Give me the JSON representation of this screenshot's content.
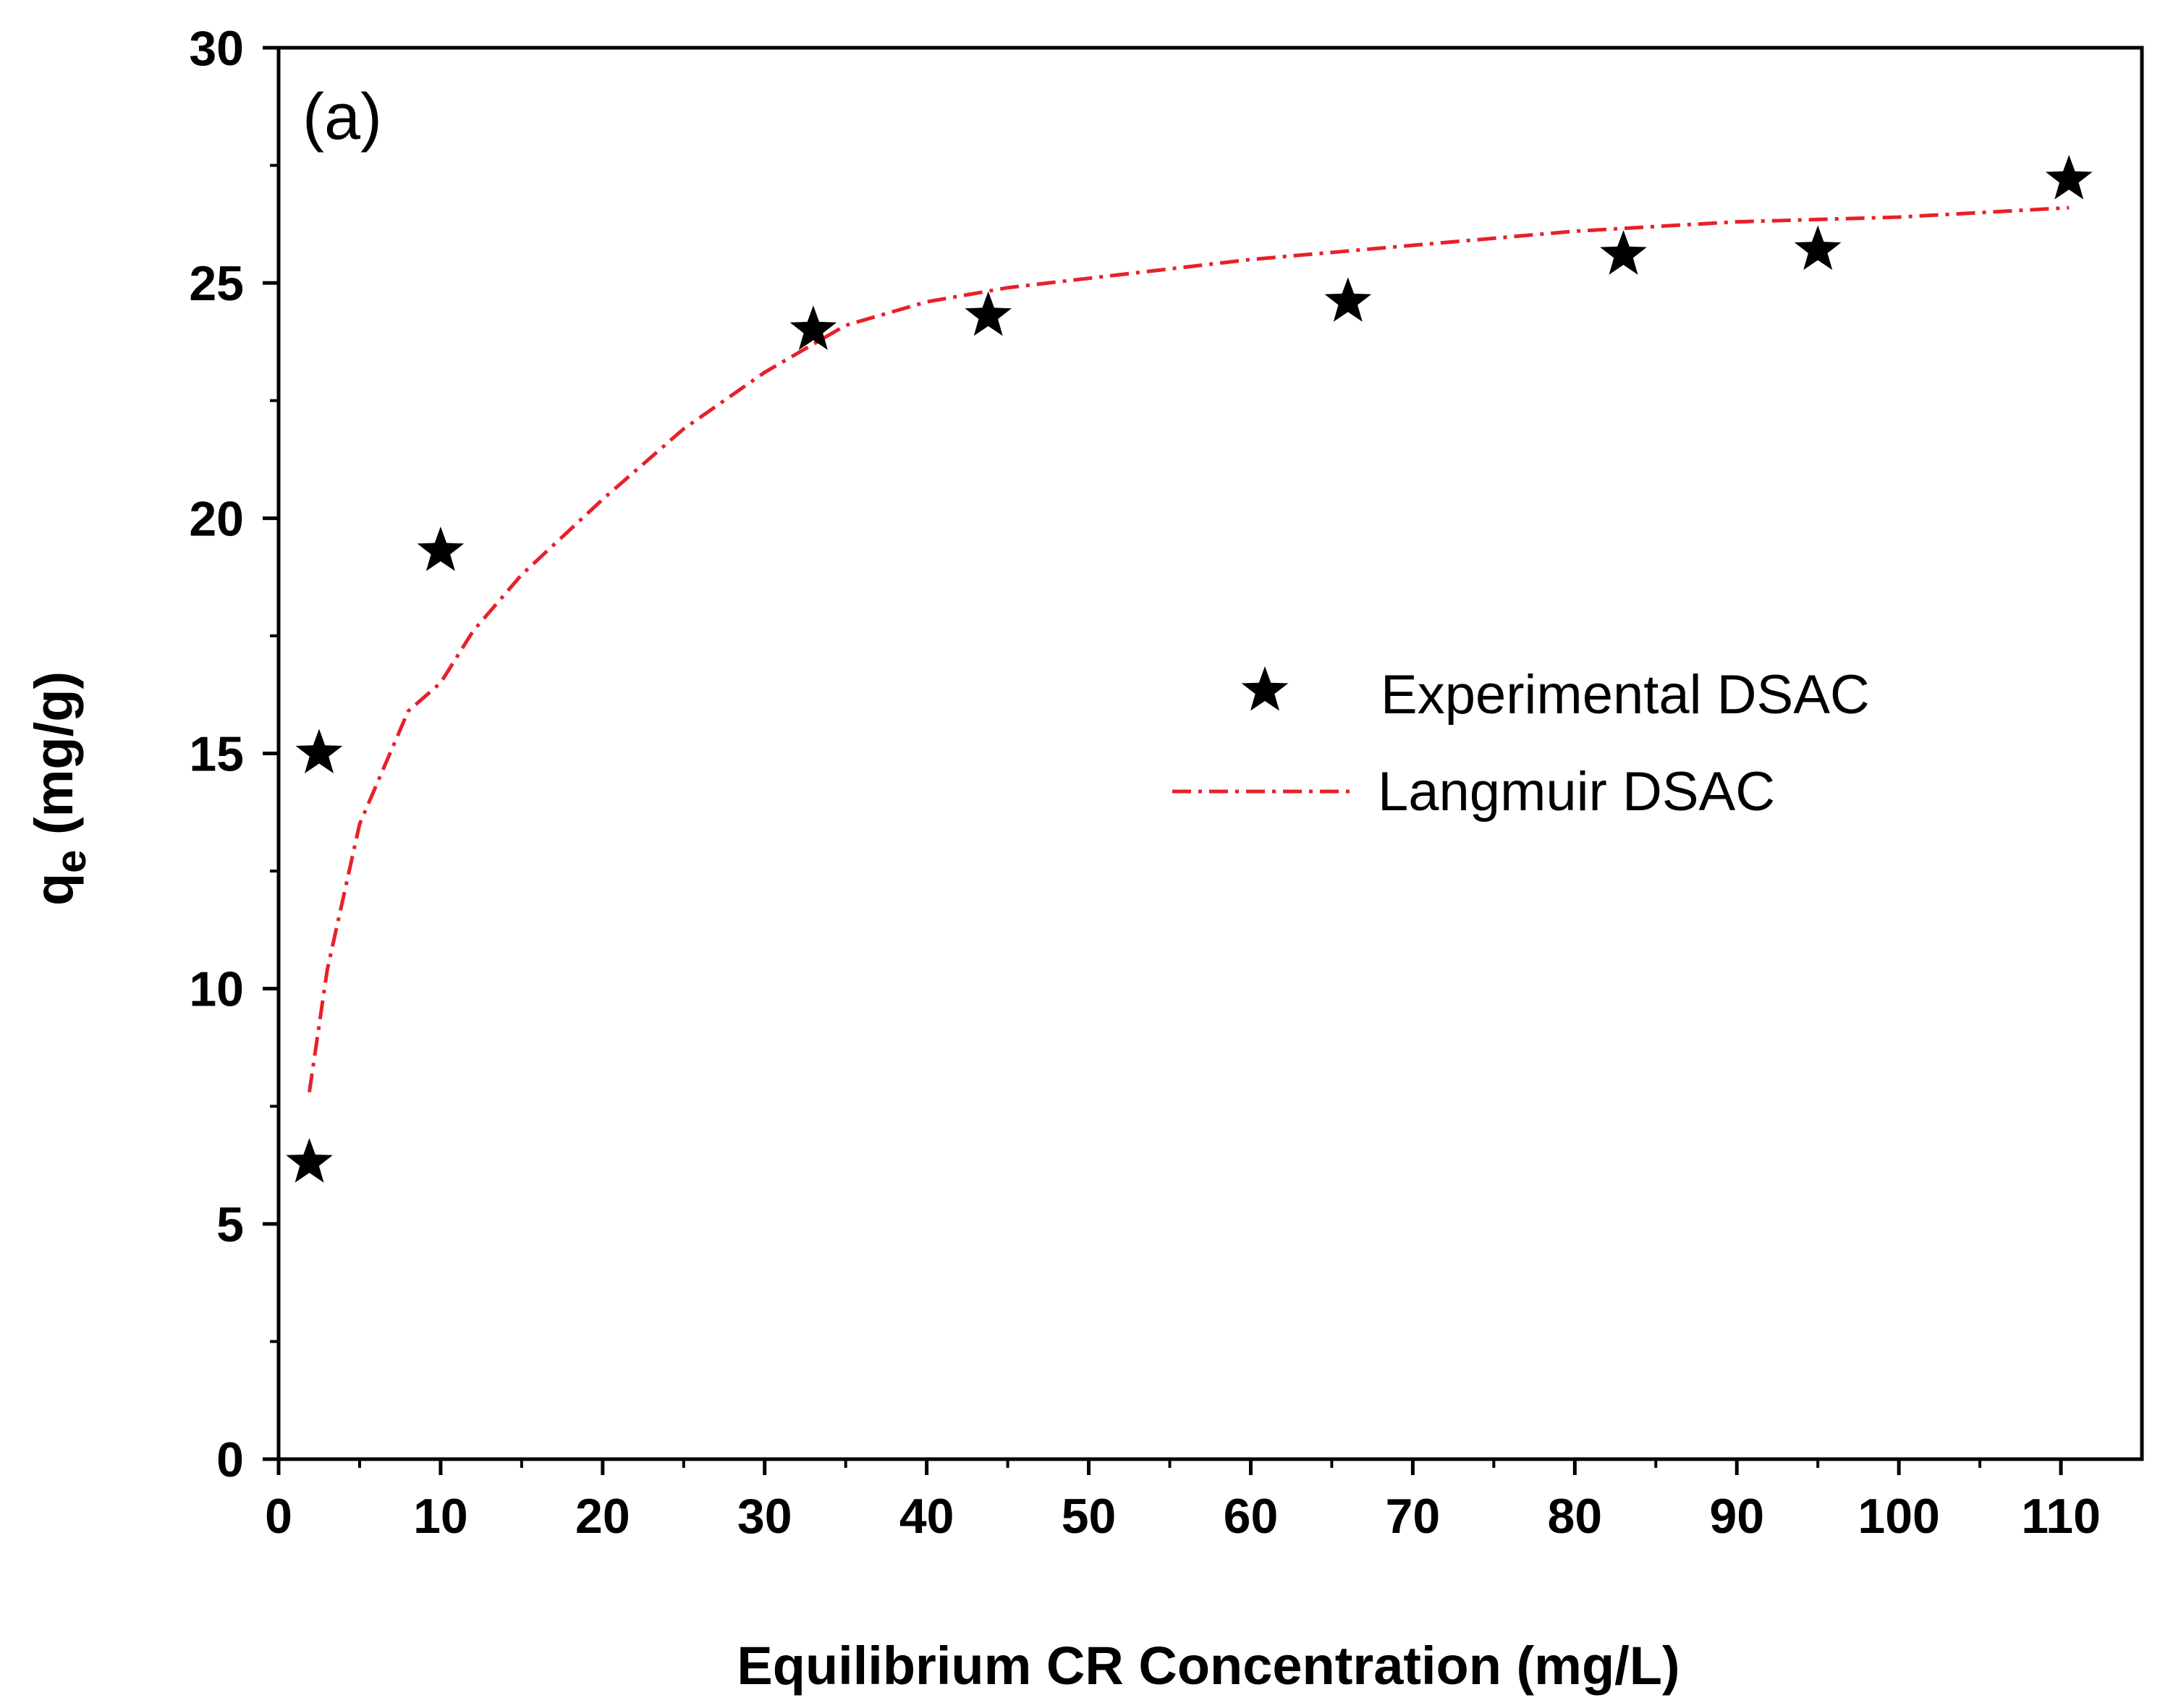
{
  "chart_data": {
    "type": "scatter",
    "panel_label": "(a)",
    "xlabel": "Equilibrium CR Concentration (mg/L)",
    "ylabel": {
      "main": "q",
      "sub": "e",
      "rest": " (mg/g)"
    },
    "xlim": [
      0,
      115
    ],
    "ylim": [
      0,
      30
    ],
    "x_ticks": [
      0,
      10,
      20,
      30,
      40,
      50,
      60,
      70,
      80,
      90,
      100,
      110
    ],
    "x_tick_labels": [
      "0",
      "10",
      "20",
      "30",
      "40",
      "50",
      "60",
      "70",
      "80",
      "90",
      "100",
      "110"
    ],
    "y_ticks": [
      0,
      5,
      10,
      15,
      20,
      25,
      30
    ],
    "y_tick_labels": [
      "0",
      "5",
      "10",
      "15",
      "20",
      "25",
      "30"
    ],
    "x_minor_step": 5,
    "y_minor_step": 2.5,
    "series": [
      {
        "name": "Experimental DSAC",
        "kind": "scatter",
        "marker": "star",
        "color": "#000000",
        "points": [
          {
            "x": 1.9,
            "y": 6.3
          },
          {
            "x": 2.5,
            "y": 15.0
          },
          {
            "x": 10.0,
            "y": 19.3
          },
          {
            "x": 33.0,
            "y": 24.0
          },
          {
            "x": 43.8,
            "y": 24.3
          },
          {
            "x": 66.0,
            "y": 24.6
          },
          {
            "x": 83.0,
            "y": 25.6
          },
          {
            "x": 95.0,
            "y": 25.7
          },
          {
            "x": 110.5,
            "y": 27.2
          }
        ]
      },
      {
        "name": "Langmuir DSAC",
        "kind": "line",
        "style": "dash-dot",
        "color": "#e8202a",
        "points": [
          {
            "x": 1.9,
            "y": 7.8
          },
          {
            "x": 3,
            "y": 10.4
          },
          {
            "x": 5,
            "y": 13.5
          },
          {
            "x": 8,
            "y": 15.9
          },
          {
            "x": 10,
            "y": 16.5
          },
          {
            "x": 12,
            "y": 17.6
          },
          {
            "x": 15,
            "y": 18.8
          },
          {
            "x": 20,
            "y": 20.4
          },
          {
            "x": 25,
            "y": 21.9
          },
          {
            "x": 30,
            "y": 23.1
          },
          {
            "x": 35,
            "y": 24.1
          },
          {
            "x": 40,
            "y": 24.6
          },
          {
            "x": 45,
            "y": 24.9
          },
          {
            "x": 50,
            "y": 25.1
          },
          {
            "x": 60,
            "y": 25.5
          },
          {
            "x": 70,
            "y": 25.8
          },
          {
            "x": 80,
            "y": 26.1
          },
          {
            "x": 90,
            "y": 26.3
          },
          {
            "x": 100,
            "y": 26.4
          },
          {
            "x": 110.5,
            "y": 26.6
          }
        ]
      }
    ],
    "legend_position": "center-right"
  }
}
